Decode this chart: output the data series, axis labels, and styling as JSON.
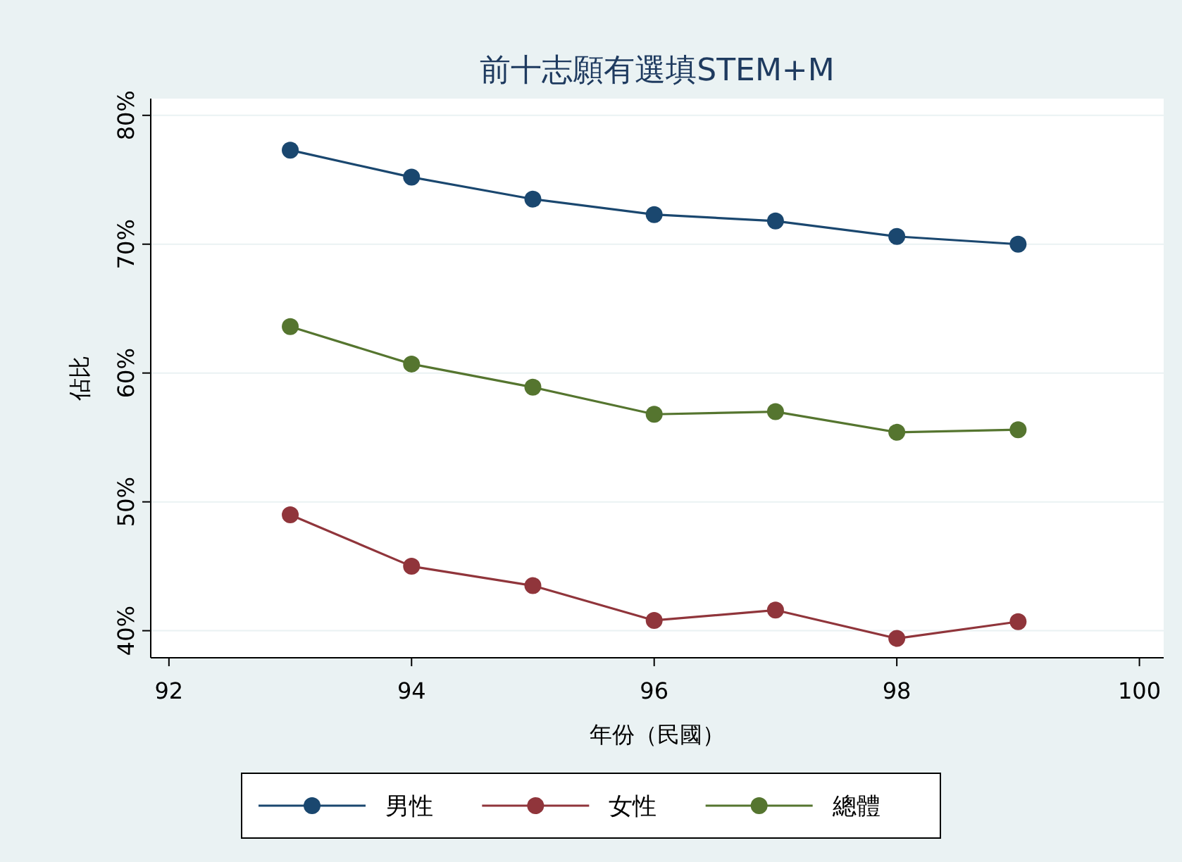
{
  "chart_data": {
    "type": "line",
    "title": "前十志願有選填STEM+M",
    "xlabel": "年份（民國）",
    "ylabel": "佔比",
    "x": [
      93,
      94,
      95,
      96,
      97,
      98,
      99
    ],
    "series": [
      {
        "name": "男性",
        "color": "#1a476f",
        "values": [
          77.3,
          75.2,
          73.5,
          72.3,
          71.8,
          70.6,
          70.0
        ]
      },
      {
        "name": "女性",
        "color": "#90353b",
        "values": [
          49.0,
          45.0,
          43.5,
          40.8,
          41.6,
          39.4,
          40.7
        ]
      },
      {
        "name": "總體",
        "color": "#55752f",
        "values": [
          63.6,
          60.7,
          58.9,
          56.8,
          57.0,
          55.4,
          55.6
        ]
      }
    ],
    "xlim": [
      91.85,
      100.2
    ],
    "xticks": [
      92,
      94,
      96,
      98,
      100
    ],
    "ylim": [
      37.9,
      81.3
    ],
    "yticks": [
      {
        "value": 40,
        "label": "40%"
      },
      {
        "value": 50,
        "label": "50%"
      },
      {
        "value": 60,
        "label": "60%"
      },
      {
        "value": 70,
        "label": "70%"
      },
      {
        "value": 80,
        "label": "80%"
      }
    ],
    "grid": "y",
    "marker": "circle",
    "line_style": "solid",
    "legend": "bottom"
  }
}
